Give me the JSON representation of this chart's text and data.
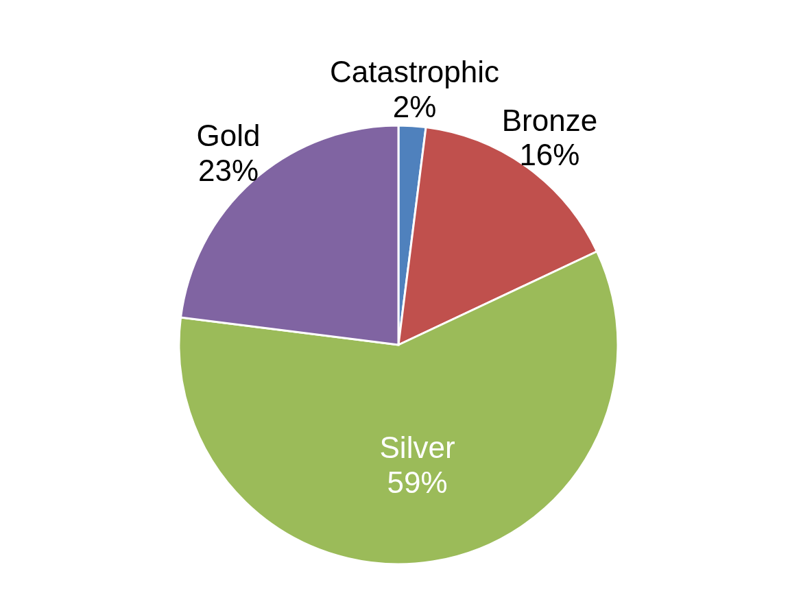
{
  "chart_data": {
    "type": "pie",
    "categories": [
      "Catastrophic",
      "Bronze",
      "Silver",
      "Gold"
    ],
    "values": [
      2,
      16,
      59,
      23
    ],
    "value_labels": [
      "2%",
      "16%",
      "59%",
      "23%"
    ],
    "colors": [
      "#4f81bd",
      "#c0504d",
      "#9bbb59",
      "#8064a2"
    ],
    "legend": false
  }
}
